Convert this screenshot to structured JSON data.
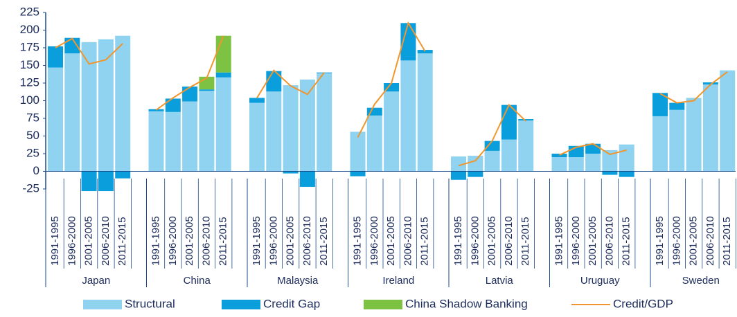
{
  "chart_data": {
    "type": "grouped-stacked-bar-line",
    "groups": [
      "Japan",
      "China",
      "Malaysia",
      "Ireland",
      "Latvia",
      "Uruguay",
      "Sweden"
    ],
    "periods": [
      "1991-1995",
      "1996-2000",
      "2001-2005",
      "2006-2010",
      "2011-2015"
    ],
    "series": [
      {
        "name": "Structural",
        "color": "#8fd3f0",
        "values": [
          [
            147,
            167,
            183,
            187,
            192
          ],
          [
            85,
            84,
            99,
            114,
            133
          ],
          [
            97,
            113,
            122,
            130,
            139
          ],
          [
            56,
            79,
            113,
            157,
            167
          ],
          [
            21,
            22,
            29,
            45,
            72
          ],
          [
            20,
            20,
            25,
            30,
            38
          ],
          [
            78,
            87,
            104,
            123,
            143
          ]
        ]
      },
      {
        "name": "Credit Gap",
        "color": "#0a9fdc",
        "values": [
          [
            30,
            22,
            -28,
            -28,
            -10
          ],
          [
            3,
            19,
            21,
            2,
            7
          ],
          [
            7,
            29,
            -3,
            -22,
            1
          ],
          [
            -7,
            11,
            12,
            53,
            5
          ],
          [
            -12,
            -8,
            14,
            49,
            2
          ],
          [
            5,
            16,
            14,
            -5,
            -8
          ],
          [
            33,
            10,
            0,
            3,
            0
          ]
        ]
      },
      {
        "name": "China Shadow Banking",
        "color": "#7dc242",
        "values": [
          [
            null,
            null,
            null,
            null,
            null
          ],
          [
            null,
            null,
            null,
            18,
            52
          ],
          [
            null,
            null,
            null,
            null,
            null
          ],
          [
            null,
            null,
            null,
            null,
            null
          ],
          [
            null,
            null,
            null,
            null,
            null
          ],
          [
            null,
            null,
            null,
            null,
            null
          ],
          [
            null,
            null,
            null,
            null,
            null
          ]
        ]
      },
      {
        "name": "Credit/GDP",
        "color": "#f0962d",
        "line": true,
        "values": [
          [
            175,
            188,
            152,
            158,
            181
          ],
          [
            87,
            104,
            119,
            132,
            192
          ],
          [
            104,
            143,
            121,
            109,
            140
          ],
          [
            48,
            95,
            125,
            210,
            170
          ],
          [
            8,
            15,
            43,
            94,
            71
          ],
          [
            23,
            34,
            39,
            24,
            30
          ],
          [
            110,
            97,
            100,
            123,
            141
          ]
        ]
      }
    ],
    "ylim": [
      -25,
      225
    ],
    "yticks": [
      -25,
      0,
      25,
      50,
      75,
      100,
      125,
      150,
      175,
      200,
      225
    ],
    "grid": false
  }
}
